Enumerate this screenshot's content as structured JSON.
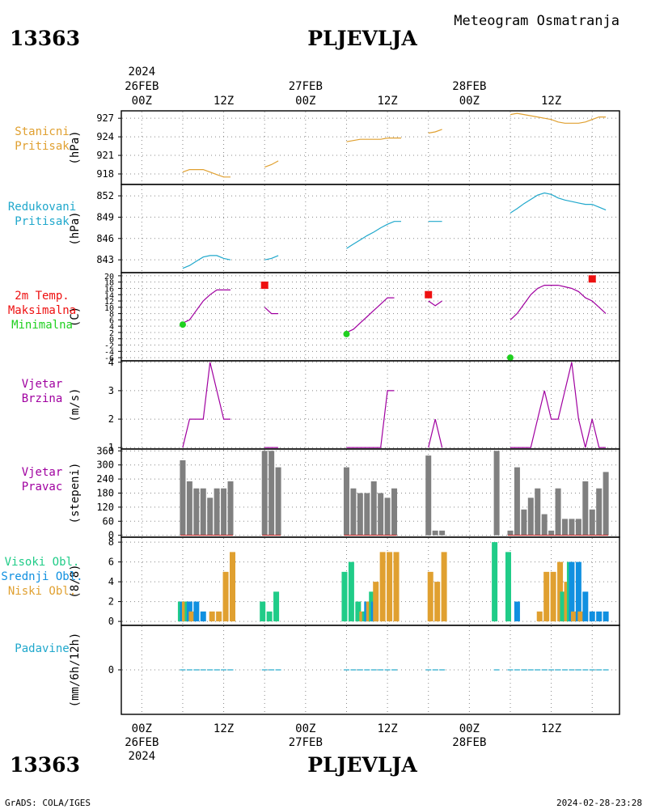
{
  "header": {
    "station_id": "13363",
    "station_name": "PLJEVLJA",
    "subtitle": "Meteogram Osmatranja"
  },
  "footer": {
    "credit": "GrADS: COLA/IGES",
    "timestamp": "2024-02-28-23:28"
  },
  "time_axis": {
    "year_label": "2024",
    "ticks": [
      {
        "h": 0,
        "label": "00Z",
        "date": "26FEB"
      },
      {
        "h": 12,
        "label": "12Z"
      },
      {
        "h": 24,
        "label": "00Z",
        "date": "27FEB"
      },
      {
        "h": 36,
        "label": "12Z"
      },
      {
        "h": 48,
        "label": "00Z",
        "date": "28FEB"
      },
      {
        "h": 60,
        "label": "12Z"
      }
    ],
    "hours_from_0Z_26FEB": [
      -3,
      70
    ]
  },
  "colors": {
    "pressure_station": "#e0a030",
    "pressure_reduced": "#20a8cc",
    "temperature": "#a000a0",
    "tmax": "#ee1010",
    "tmin": "#20d020",
    "wind": "#a000a0",
    "wind_dir_bar": "#808080",
    "wind_dir_tick": "#cc2020",
    "cloud_high": "#20cc88",
    "cloud_mid": "#1090e0",
    "cloud_low": "#e0a030",
    "precip": "#20a8cc",
    "label_precip": "#20a8cc"
  },
  "chart_data": [
    {
      "id": "pressure",
      "type": "line",
      "labels": [
        "Stanicni",
        "Pritisak"
      ],
      "label_colors": [
        "#e0a030",
        "#e0a030"
      ],
      "ylabel": "(hPa)",
      "yticks": [
        918,
        921,
        924,
        927
      ],
      "ylim": [
        916.3,
        928.2
      ],
      "series": [
        {
          "x": [
            6,
            7,
            8,
            9,
            10,
            11,
            12,
            13
          ],
          "y": [
            918.3,
            918.7,
            918.7,
            918.7,
            918.3,
            917.9,
            917.5,
            917.5
          ]
        },
        {
          "x": [
            18,
            19,
            20
          ],
          "y": [
            919.1,
            919.5,
            920.1
          ]
        },
        {
          "x": [
            30,
            31,
            32,
            33,
            34,
            35,
            36,
            37,
            38
          ],
          "y": [
            923.2,
            923.4,
            923.6,
            923.6,
            923.6,
            923.6,
            923.8,
            923.8,
            923.8
          ]
        },
        {
          "x": [
            42,
            43,
            44
          ],
          "y": [
            924.6,
            924.8,
            925.2
          ]
        },
        {
          "x": [
            54,
            55,
            56,
            57,
            58,
            59,
            60,
            61,
            62,
            63,
            64,
            65,
            66,
            67,
            68
          ],
          "y": [
            927.6,
            927.8,
            927.6,
            927.4,
            927.2,
            927.0,
            926.8,
            926.4,
            926.2,
            926.2,
            926.2,
            926.4,
            926.8,
            927.2,
            927.2
          ]
        }
      ]
    },
    {
      "id": "reduced_pressure",
      "type": "line",
      "labels": [
        "Redukovani",
        "Pritisak"
      ],
      "label_colors": [
        "#20a8cc",
        "#20a8cc"
      ],
      "ylabel": "(hPa)",
      "yticks": [
        843,
        846,
        849,
        852
      ],
      "ylim": [
        841.2,
        853.6
      ],
      "series": [
        {
          "x": [
            6,
            7,
            8,
            9,
            10,
            11,
            12,
            13
          ],
          "y": [
            841.8,
            842.2,
            842.8,
            843.4,
            843.6,
            843.6,
            843.2,
            843.0
          ]
        },
        {
          "x": [
            18,
            19,
            20
          ],
          "y": [
            843.0,
            843.2,
            843.6
          ]
        },
        {
          "x": [
            30,
            31,
            32,
            33,
            34,
            35,
            36,
            37,
            38
          ],
          "y": [
            844.6,
            845.2,
            845.8,
            846.4,
            846.9,
            847.5,
            848.0,
            848.4,
            848.4
          ]
        },
        {
          "x": [
            42,
            43,
            44
          ],
          "y": [
            848.4,
            848.4,
            848.4
          ]
        },
        {
          "x": [
            54,
            55,
            56,
            57,
            58,
            59,
            60,
            61,
            62,
            63,
            64,
            65,
            66,
            67,
            68
          ],
          "y": [
            849.6,
            850.2,
            850.9,
            851.5,
            852.1,
            852.4,
            852.2,
            851.7,
            851.4,
            851.2,
            851.0,
            850.8,
            850.8,
            850.4,
            850.0
          ]
        }
      ]
    },
    {
      "id": "temperature",
      "type": "line",
      "labels": [
        "2m Temp.",
        "Maksimalna",
        "Minimalna"
      ],
      "label_colors": [
        "#ee1010",
        "#ee1010",
        "#20d020"
      ],
      "ylabel": "(C)",
      "yticks": [
        -6,
        -4,
        -2,
        0,
        2,
        4,
        6,
        8,
        10,
        12,
        14,
        16,
        18,
        20
      ],
      "ylim": [
        -7,
        21
      ],
      "series": [
        {
          "x": [
            6,
            7,
            8,
            9,
            10,
            11,
            12,
            13
          ],
          "y": [
            5,
            6,
            9,
            12,
            14,
            15.5,
            15.5,
            15.5
          ]
        },
        {
          "x": [
            18,
            19,
            20
          ],
          "y": [
            10,
            8,
            8
          ]
        },
        {
          "x": [
            30,
            31,
            32,
            33,
            34,
            35,
            36,
            37
          ],
          "y": [
            2,
            3,
            5,
            7,
            9,
            11,
            13,
            13
          ]
        },
        {
          "x": [
            42,
            43,
            44
          ],
          "y": [
            12,
            10.5,
            12
          ]
        },
        {
          "x": [
            54,
            55,
            56,
            57,
            58,
            59,
            60,
            61,
            62,
            63,
            64,
            65,
            66,
            67,
            68
          ],
          "y": [
            6,
            8,
            11,
            14,
            16,
            17,
            17,
            17,
            16.5,
            16,
            15,
            13,
            12,
            10,
            8
          ]
        }
      ],
      "max_points": {
        "x": [
          18,
          42,
          66
        ],
        "y": [
          17,
          14,
          19
        ]
      },
      "min_points": {
        "x": [
          6,
          30,
          54
        ],
        "y": [
          4.5,
          1.5,
          -6
        ]
      }
    },
    {
      "id": "wind_speed",
      "type": "line",
      "labels": [
        "Vjetar",
        "Brzina"
      ],
      "label_colors": [
        "#a000a0",
        "#a000a0"
      ],
      "ylabel": "(m/s)",
      "yticks": [
        1,
        2,
        3,
        4
      ],
      "ylim": [
        0.95,
        4.05
      ],
      "series": [
        {
          "x": [
            6,
            7,
            8,
            9,
            10,
            11,
            12,
            13
          ],
          "y": [
            1,
            2,
            2,
            2,
            4,
            3,
            2,
            2
          ]
        },
        {
          "x": [
            18,
            19,
            20
          ],
          "y": [
            1,
            1,
            1
          ]
        },
        {
          "x": [
            30,
            31,
            32,
            33,
            34,
            35,
            36,
            37
          ],
          "y": [
            1,
            1,
            1,
            1,
            1,
            1,
            3,
            3
          ]
        },
        {
          "x": [
            42,
            43,
            44
          ],
          "y": [
            1,
            2,
            1
          ]
        },
        {
          "x": [
            54,
            55,
            56,
            57,
            58,
            59,
            60,
            61,
            62,
            63,
            64,
            65,
            66,
            67,
            68
          ],
          "y": [
            1,
            1,
            1,
            1,
            2,
            3,
            2,
            2,
            3,
            4,
            2,
            1,
            2,
            1,
            1
          ]
        }
      ]
    },
    {
      "id": "wind_direction",
      "type": "bar",
      "labels": [
        "Vjetar",
        "Pravac"
      ],
      "label_colors": [
        "#a000a0",
        "#a000a0"
      ],
      "ylabel": "(stepeni)",
      "yticks": [
        0,
        60,
        120,
        180,
        240,
        300,
        360
      ],
      "ylim": [
        -8,
        368
      ],
      "x": [
        6,
        7,
        8,
        9,
        10,
        11,
        12,
        13,
        18,
        19,
        20,
        30,
        31,
        32,
        33,
        34,
        35,
        36,
        37,
        42,
        43,
        44,
        52,
        54,
        55,
        56,
        57,
        58,
        59,
        60,
        61,
        62,
        63,
        64,
        65,
        66,
        67,
        68
      ],
      "values": [
        320,
        230,
        200,
        200,
        160,
        200,
        200,
        230,
        360,
        360,
        290,
        290,
        200,
        180,
        180,
        230,
        180,
        160,
        200,
        340,
        20,
        20,
        360,
        20,
        290,
        110,
        160,
        200,
        90,
        20,
        200,
        70,
        70,
        70,
        230,
        110,
        200,
        270
      ]
    },
    {
      "id": "clouds",
      "type": "bar",
      "labels": [
        "Visoki Obl.",
        "Srednji Obl.",
        "Niski Obl."
      ],
      "label_colors": [
        "#20cc88",
        "#1090e0",
        "#e0a030"
      ],
      "ylabel": "(8/8)",
      "yticks": [
        0,
        2,
        4,
        6,
        8
      ],
      "ylim": [
        -0.4,
        8.5
      ],
      "x": [
        6,
        7,
        8,
        9,
        10,
        11,
        12,
        13,
        18,
        19,
        20,
        30,
        31,
        32,
        33,
        34,
        35,
        36,
        37,
        42,
        43,
        44,
        52,
        54,
        55,
        56,
        57,
        58,
        59,
        60,
        61,
        62,
        63,
        64,
        65,
        66,
        67,
        68
      ],
      "series": [
        {
          "name": "Visoki Obl.",
          "values": [
            2,
            2,
            0,
            0,
            0,
            0,
            0,
            0,
            2,
            1,
            3,
            5,
            6,
            2,
            1,
            3,
            0,
            0,
            0,
            0,
            0,
            0,
            8,
            7,
            0,
            0,
            0,
            0,
            0,
            0,
            0,
            3,
            6,
            0,
            0,
            0,
            0,
            0
          ]
        },
        {
          "name": "Srednji Obl.",
          "values": [
            2,
            2,
            2,
            1,
            0,
            0,
            0,
            0,
            0,
            0,
            0,
            0,
            0,
            0,
            2,
            2,
            0,
            0,
            0,
            0,
            0,
            0,
            0,
            0,
            2,
            0,
            0,
            0,
            0,
            0,
            0,
            0,
            6,
            6,
            3,
            1,
            1,
            1
          ]
        },
        {
          "name": "Niski Obl.",
          "values": [
            2,
            1,
            0,
            0,
            1,
            1,
            5,
            7,
            0,
            0,
            0,
            0,
            0,
            1,
            2,
            4,
            7,
            7,
            7,
            5,
            4,
            7,
            0,
            0,
            0,
            0,
            0,
            1,
            5,
            5,
            6,
            4,
            1,
            1,
            0,
            0,
            0,
            0
          ]
        }
      ]
    },
    {
      "id": "precipitation",
      "type": "bar",
      "labels": [
        "Padavine"
      ],
      "label_colors": [
        "#20a8cc"
      ],
      "ylabel": "(mm/6h/12h)",
      "yticks": [
        0
      ],
      "ylim": [
        -5,
        5
      ],
      "x": [
        6,
        7,
        8,
        9,
        10,
        11,
        12,
        13,
        18,
        19,
        20,
        30,
        31,
        32,
        33,
        34,
        35,
        36,
        37,
        42,
        43,
        44,
        52,
        54,
        55,
        56,
        57,
        58,
        59,
        60,
        61,
        62,
        63,
        64,
        65,
        66,
        67,
        68
      ],
      "values": [
        0,
        0,
        0,
        0,
        0,
        0,
        0,
        0,
        0,
        0,
        0,
        0,
        0,
        0,
        0,
        0,
        0,
        0,
        0,
        0,
        0,
        0,
        0,
        0,
        0,
        0,
        0,
        0,
        0,
        0,
        0,
        0,
        0,
        0,
        0,
        0,
        0,
        0
      ]
    }
  ]
}
